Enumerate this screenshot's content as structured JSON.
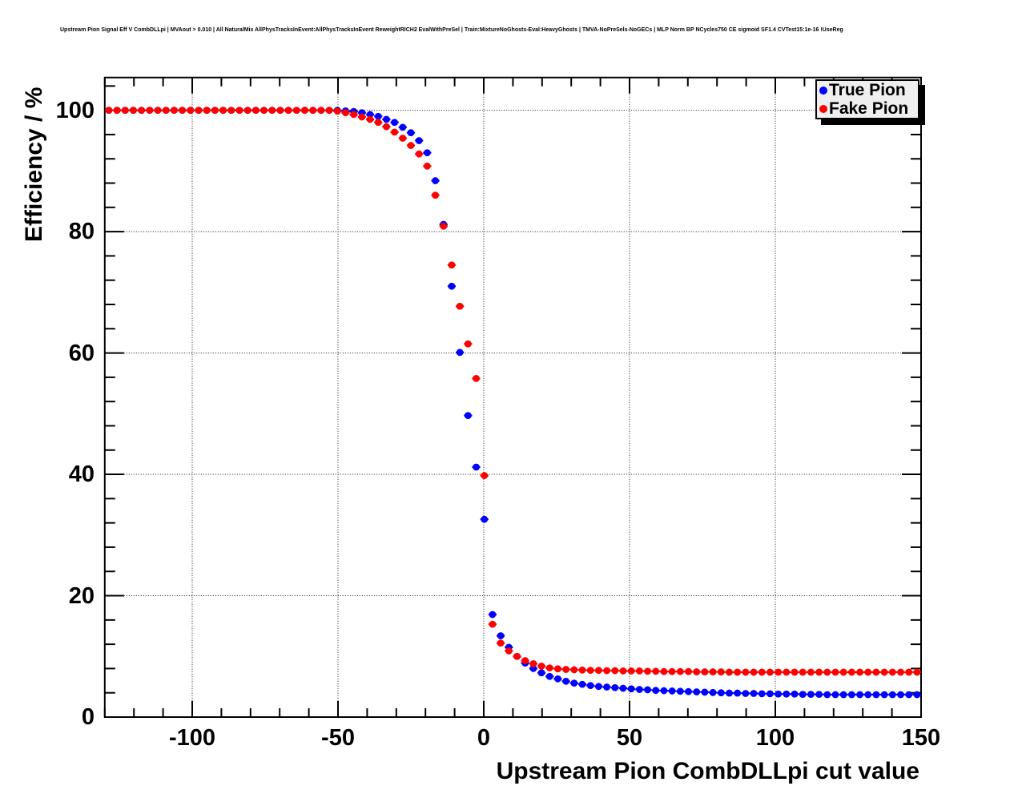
{
  "title": "Upstream Pion Signal Eff V CombDLLpi | MVAout > 0.010 | All NaturalMix AllPhysTracksInEvent:AllPhysTracksInEvent ReweightRICH2 EvalWithPreSel | Train:MixtureNoGhosts-Eval:HeavyGhosts | TMVA-NoPreSels-NoGECs | MLP Norm BP NCycles750 CE sigmoid SF1.4 CVTest15:1e-16 !UseReg",
  "colors": {
    "true_pion": "#0000ff",
    "fake_pion": "#ff0000",
    "frame": "#000000",
    "grid": "#111111",
    "legend_bg": "#efefef"
  },
  "chart_data": {
    "type": "scatter",
    "title": "Upstream Pion Signal Eff V CombDLLpi",
    "xlabel": "Upstream Pion CombDLLpi cut value",
    "ylabel": "Efficiency / %",
    "xlim": [
      -130,
      150
    ],
    "ylim": [
      0,
      105.4
    ],
    "x_ticks": [
      -100,
      -50,
      0,
      50,
      100,
      150
    ],
    "y_ticks": [
      0,
      20,
      40,
      60,
      80,
      100
    ],
    "x_minor_step": 10,
    "y_minor_step": 4,
    "grid": "dotted",
    "legend": {
      "position": "top-right",
      "entries": [
        {
          "label": "True Pion",
          "color": "#0000ff"
        },
        {
          "label": "Fake Pion",
          "color": "#ff0000"
        }
      ]
    },
    "x_error_halfwidth": 1.4,
    "x": [
      -128.6,
      -125.8,
      -123,
      -120.2,
      -117.4,
      -114.6,
      -111.8,
      -109,
      -106.2,
      -103.4,
      -100.6,
      -97.8,
      -95,
      -92.2,
      -89.4,
      -86.6,
      -83.8,
      -81,
      -78.2,
      -75.4,
      -72.6,
      -69.8,
      -67,
      -64.2,
      -61.4,
      -58.6,
      -55.8,
      -53,
      -50.2,
      -47.4,
      -44.6,
      -41.8,
      -39,
      -36.2,
      -33.4,
      -30.6,
      -27.8,
      -25,
      -22.2,
      -19.4,
      -16.6,
      -13.8,
      -11,
      -8.2,
      -5.4,
      -2.6,
      0.2,
      3,
      5.8,
      8.6,
      11.4,
      14.2,
      17,
      19.8,
      22.6,
      25.4,
      28.2,
      31,
      33.8,
      36.6,
      39.4,
      42.2,
      45,
      47.8,
      50.6,
      53.4,
      56.2,
      59,
      61.8,
      64.6,
      67.4,
      70.2,
      73,
      75.8,
      78.6,
      81.4,
      84.2,
      87,
      89.8,
      92.6,
      95.4,
      98.2,
      101,
      103.8,
      106.6,
      109.4,
      112.2,
      115,
      117.8,
      120.6,
      123.4,
      126.2,
      129,
      131.8,
      134.6,
      137.4,
      140.2,
      143,
      145.8,
      148.6
    ],
    "series": [
      {
        "name": "True Pion",
        "color": "#0000ff",
        "values": [
          100,
          100,
          100,
          100,
          100,
          100,
          100,
          100,
          100,
          100,
          100,
          100,
          100,
          100,
          100,
          100,
          100,
          100,
          100,
          100,
          100,
          100,
          100,
          100,
          100,
          100,
          100,
          100,
          100,
          99.9,
          99.8,
          99.6,
          99.3,
          99,
          98.5,
          98,
          97.2,
          96.3,
          95,
          93,
          88.4,
          81.2,
          71,
          60.1,
          49.7,
          41.2,
          32.6,
          16.9,
          13.4,
          11.5,
          10,
          8.9,
          8,
          7.3,
          6.7,
          6.3,
          5.9,
          5.6,
          5.4,
          5.2,
          5.05,
          4.95,
          4.85,
          4.75,
          4.65,
          4.55,
          4.5,
          4.4,
          4.35,
          4.3,
          4.25,
          4.2,
          4.15,
          4.1,
          4.05,
          4,
          3.95,
          3.95,
          3.9,
          3.9,
          3.85,
          3.85,
          3.8,
          3.8,
          3.8,
          3.75,
          3.75,
          3.75,
          3.7,
          3.7,
          3.7,
          3.7,
          3.7,
          3.7,
          3.7,
          3.7,
          3.7,
          3.7,
          3.7,
          3.7
        ]
      },
      {
        "name": "Fake Pion",
        "color": "#ff0000",
        "values": [
          100,
          100,
          100,
          100,
          100,
          100,
          100,
          100,
          100,
          100,
          100,
          100,
          100,
          100,
          100,
          100,
          100,
          100,
          100,
          100,
          100,
          100,
          100,
          100,
          100,
          100,
          100,
          100,
          99.85,
          99.6,
          99.3,
          98.9,
          98.5,
          98,
          97.3,
          96.4,
          95.4,
          94.2,
          92.8,
          90.8,
          86,
          80.9,
          74.5,
          67.7,
          61.5,
          55.8,
          39.8,
          15.3,
          12.2,
          10.9,
          10,
          9.3,
          8.8,
          8.4,
          8.1,
          7.95,
          7.85,
          7.8,
          7.75,
          7.7,
          7.7,
          7.65,
          7.65,
          7.6,
          7.6,
          7.6,
          7.55,
          7.55,
          7.5,
          7.5,
          7.5,
          7.5,
          7.45,
          7.45,
          7.45,
          7.45,
          7.4,
          7.4,
          7.4,
          7.4,
          7.4,
          7.4,
          7.4,
          7.4,
          7.4,
          7.4,
          7.4,
          7.4,
          7.4,
          7.4,
          7.4,
          7.4,
          7.4,
          7.4,
          7.4,
          7.4,
          7.4,
          7.4,
          7.4,
          7.4
        ]
      }
    ]
  }
}
